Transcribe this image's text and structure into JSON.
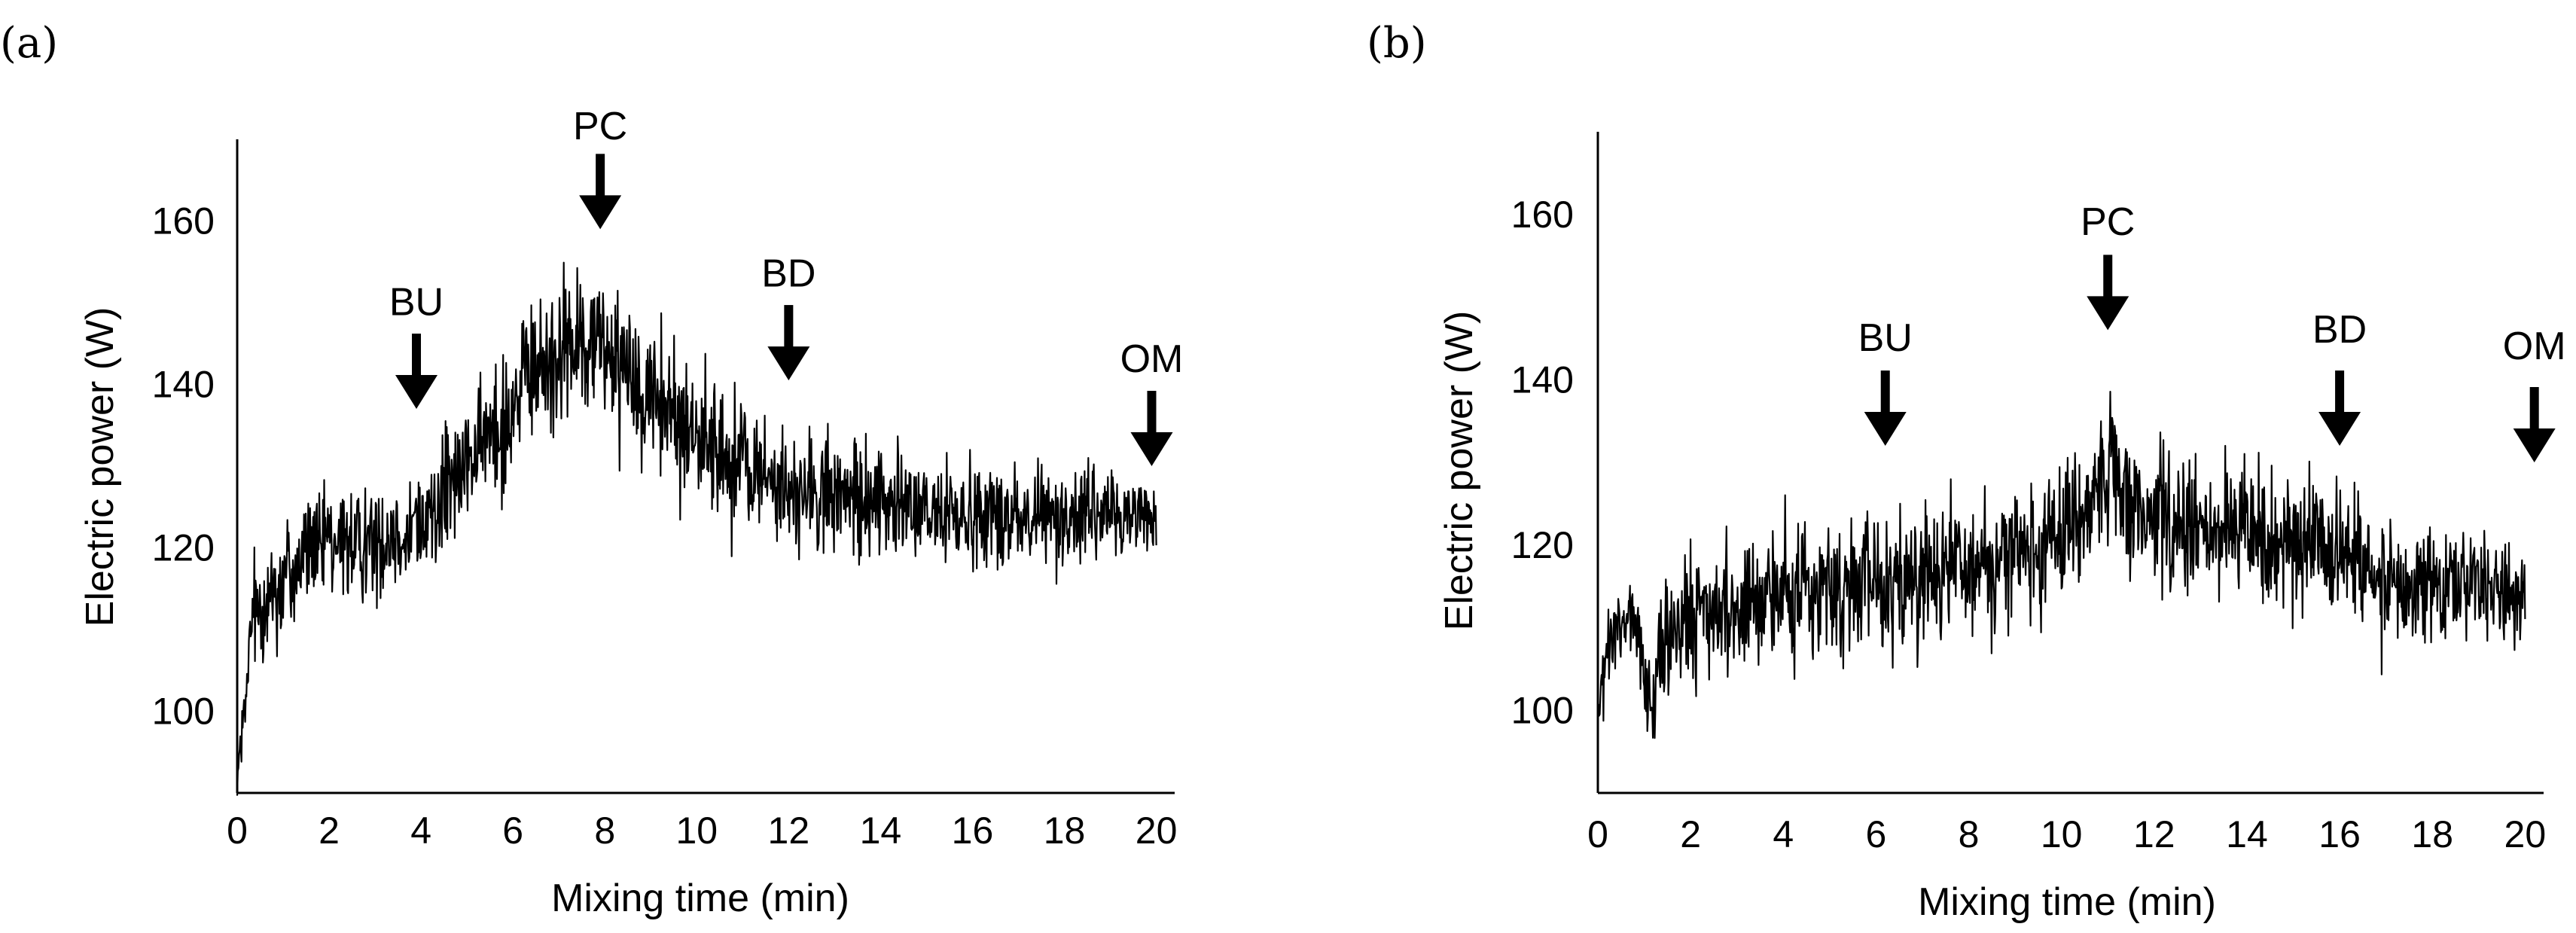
{
  "figure": {
    "panels": [
      {
        "label": "(a)",
        "id": "a"
      },
      {
        "label": "(b)",
        "id": "b"
      }
    ]
  },
  "chart_data": [
    {
      "type": "line",
      "panel_label": "(a)",
      "xlabel": "Mixing time (min)",
      "ylabel": "Electric power (W)",
      "xlim": [
        0,
        20.4
      ],
      "ylim": [
        90,
        170
      ],
      "x_ticks": [
        0,
        2,
        4,
        6,
        8,
        10,
        12,
        14,
        16,
        18,
        20
      ],
      "y_ticks": [
        100,
        120,
        140,
        160
      ],
      "grid": false,
      "trace_envelope": {
        "x": [
          0,
          0.2,
          0.3,
          0.5,
          1,
          1.5,
          2,
          3,
          4,
          4.5,
          5,
          5.5,
          6,
          6.5,
          7,
          7.5,
          8,
          8.5,
          9,
          9.5,
          10,
          10.5,
          11,
          11.5,
          12,
          13,
          14,
          15,
          16,
          17,
          18,
          19,
          19.5,
          20
        ],
        "min": [
          88,
          95,
          103,
          103,
          102,
          108,
          110,
          110,
          112,
          115,
          120,
          122,
          124,
          128,
          130,
          132,
          132,
          128,
          126,
          124,
          122,
          120,
          118,
          116,
          116,
          115,
          115,
          114,
          115,
          115,
          115,
          116,
          117,
          117
        ],
        "max": [
          96,
          108,
          118,
          124,
          130,
          131,
          130,
          131,
          134,
          138,
          140,
          146,
          152,
          155,
          158,
          158,
          158,
          156,
          152,
          148,
          145,
          143,
          142,
          141,
          138,
          136,
          137,
          134,
          134,
          132,
          133,
          133,
          132,
          130
        ]
      },
      "annotations": [
        {
          "label": "BU",
          "x": 3.9,
          "y_tip": 137,
          "y_label": 148.5
        },
        {
          "label": "PC",
          "x": 7.9,
          "y_tip": 159,
          "y_label": 170
        },
        {
          "label": "BD",
          "x": 12.0,
          "y_tip": 140.5,
          "y_label": 152
        },
        {
          "label": "OM",
          "x": 19.9,
          "y_tip": 130,
          "y_label": 141.5
        }
      ]
    },
    {
      "type": "line",
      "panel_label": "(b)",
      "xlabel": "Mixing time (min)",
      "ylabel": "Electric power (W)",
      "xlim": [
        0,
        20.4
      ],
      "ylim": [
        90,
        170
      ],
      "x_ticks": [
        0,
        2,
        4,
        6,
        8,
        10,
        12,
        14,
        16,
        18,
        20
      ],
      "y_ticks": [
        100,
        120,
        140,
        160
      ],
      "grid": false,
      "trace_envelope": {
        "x": [
          0,
          0.2,
          0.5,
          0.8,
          1,
          1.2,
          1.3,
          2,
          3,
          4,
          5,
          6,
          7,
          8,
          9,
          10,
          10.5,
          11,
          11.5,
          12,
          13,
          14,
          15,
          16,
          17,
          18,
          19,
          19.5,
          20
        ],
        "min": [
          95,
          98,
          101,
          104,
          94,
          92,
          96,
          99,
          100,
          102,
          103,
          103,
          104,
          105,
          106,
          108,
          110,
          112,
          112,
          110,
          110,
          109,
          108,
          106,
          104,
          104,
          103,
          103,
          103
        ],
        "max": [
          103,
          116,
          119,
          117,
          112,
          105,
          120,
          123,
          124,
          126,
          127,
          128,
          128,
          130,
          131,
          134,
          138,
          142,
          140,
          137,
          135,
          133,
          132,
          131,
          128,
          127,
          128,
          126,
          122
        ]
      },
      "annotations": [
        {
          "label": "BU",
          "x": 6.2,
          "y_tip": 132,
          "y_label": 143.5
        },
        {
          "label": "PC",
          "x": 11.0,
          "y_tip": 146,
          "y_label": 157.5
        },
        {
          "label": "BD",
          "x": 16.0,
          "y_tip": 132,
          "y_label": 144.5
        },
        {
          "label": "OM",
          "x": 20.2,
          "y_tip": 130,
          "y_label": 142.5
        }
      ]
    }
  ]
}
